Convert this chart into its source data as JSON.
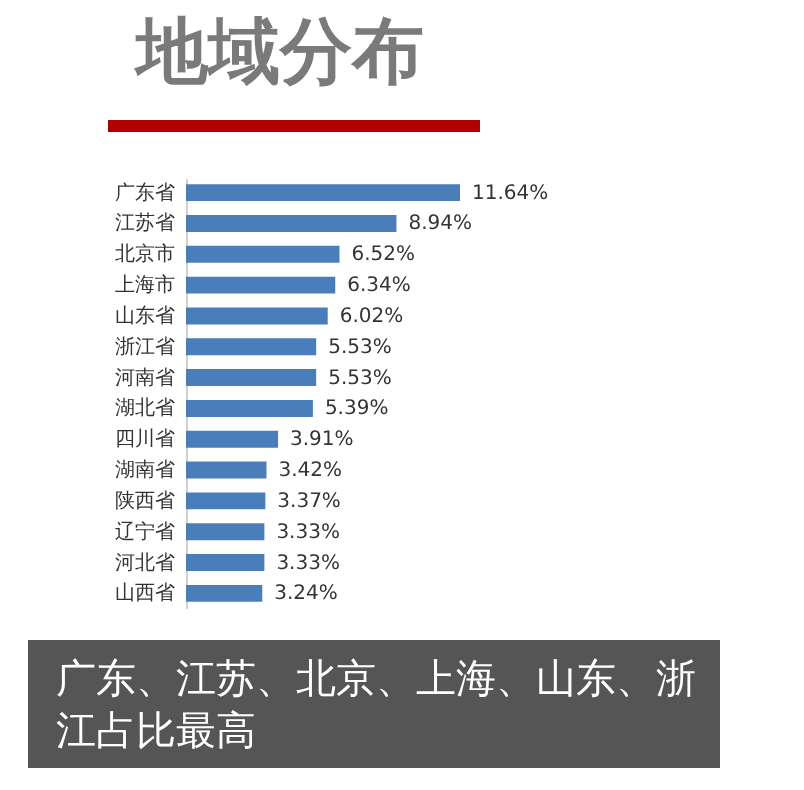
{
  "chart_data": {
    "type": "bar",
    "orientation": "horizontal",
    "title": "地域分布",
    "categories": [
      "广东省",
      "江苏省",
      "北京市",
      "上海市",
      "山东省",
      "浙江省",
      "河南省",
      "湖北省",
      "四川省",
      "湖南省",
      "陕西省",
      "辽宁省",
      "河北省",
      "山西省"
    ],
    "values": [
      11.64,
      8.94,
      6.52,
      6.34,
      6.02,
      5.53,
      5.53,
      5.39,
      3.91,
      3.42,
      3.37,
      3.33,
      3.33,
      3.24
    ],
    "value_labels": [
      "11.64%",
      "8.94%",
      "6.52%",
      "6.34%",
      "6.02%",
      "5.53%",
      "5.53%",
      "5.39%",
      "3.91%",
      "3.42%",
      "3.37%",
      "3.33%",
      "3.33%",
      "3.24%"
    ],
    "color": "#4a7ebb",
    "annotations": [
      "广东、江苏、北京、上海、山东、浙江占比最高"
    ]
  }
}
